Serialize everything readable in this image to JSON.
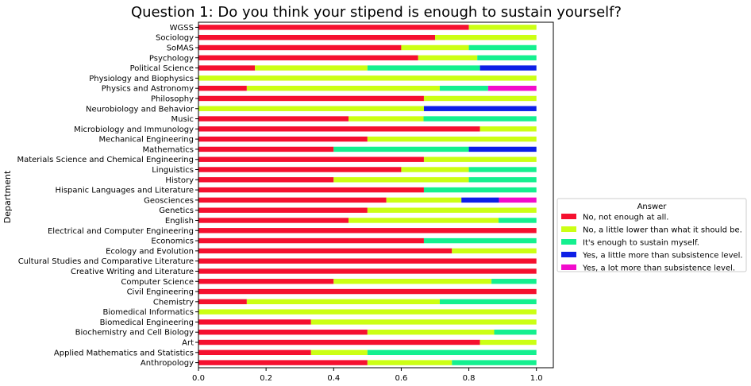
{
  "chart_data": {
    "type": "bar",
    "orientation": "horizontal",
    "stacked": true,
    "title": "Question 1: Do you think your stipend is enough to sustain yourself?",
    "xlabel": "",
    "ylabel": "Department",
    "xlim": [
      0,
      1.05
    ],
    "x_ticks": [
      "0.0",
      "0.2",
      "0.4",
      "0.6",
      "0.8",
      "1.0"
    ],
    "grid": false,
    "legend_title": "Answer",
    "legend_placement": "outside-right",
    "categories": [
      "WGSS",
      "Sociology",
      "SoMAS",
      "Psychology",
      "Political Science",
      "Physiology and Biophysics",
      "Physics and Astronomy",
      "Philosophy",
      "Neurobiology and Behavior",
      "Music",
      "Microbiology and Immunology",
      "Mechanical Engineering",
      "Mathematics",
      "Materials Science and Chemical Engineering",
      "Linguistics",
      "History",
      "Hispanic Languages and Literature",
      "Geosciences",
      "Genetics",
      "English",
      "Electrical and Computer Engineering",
      "Economics",
      "Ecology and Evolution",
      "Cultural Studies and Comparative Literature",
      "Creative Writing and Literature",
      "Computer Science",
      "Civil Engineering",
      "Chemistry",
      "Biomedical Informatics",
      "Biomedical Engineering",
      "Biochemistry and Cell Biology",
      "Art",
      "Applied Mathematics and Statistics",
      "Anthropology"
    ],
    "series": [
      {
        "name": "No, not enough at all.",
        "color": "#f5102f",
        "values": [
          0.8,
          0.7,
          0.6,
          0.65,
          0.167,
          0,
          0.143,
          0.667,
          0,
          0.444,
          0.833,
          0.5,
          0.4,
          0.667,
          0.6,
          0.4,
          0.667,
          0.556,
          0.5,
          0.444,
          1.0,
          0.667,
          0.75,
          1.0,
          1.0,
          0.4,
          1.0,
          0.143,
          0,
          0.333,
          0.5,
          0.833,
          0.333,
          0.5
        ]
      },
      {
        "name": "No, a little lower than what it should be.",
        "color": "#ccff14",
        "values": [
          0.2,
          0.3,
          0.2,
          0.175,
          0.333,
          1.0,
          0.571,
          0.333,
          0.667,
          0.222,
          0.167,
          0.5,
          0,
          0.333,
          0.2,
          0.4,
          0,
          0.222,
          0.5,
          0.444,
          0,
          0,
          0.25,
          0,
          0,
          0.467,
          0,
          0.571,
          1.0,
          0.667,
          0.375,
          0.167,
          0.167,
          0.25
        ]
      },
      {
        "name": "It's enough to sustain myself.",
        "color": "#14f08f",
        "values": [
          0,
          0,
          0.2,
          0.175,
          0.333,
          0,
          0.143,
          0,
          0,
          0.334,
          0,
          0,
          0.4,
          0,
          0.2,
          0.2,
          0.333,
          0,
          0,
          0.112,
          0,
          0.333,
          0,
          0,
          0,
          0.133,
          0,
          0.286,
          0,
          0,
          0.125,
          0,
          0.5,
          0.25
        ]
      },
      {
        "name": "Yes, a little more than subsistence level.",
        "color": "#0d1fe6",
        "values": [
          0,
          0,
          0,
          0,
          0.167,
          0,
          0,
          0,
          0.333,
          0,
          0,
          0,
          0.2,
          0,
          0,
          0,
          0,
          0.111,
          0,
          0,
          0,
          0,
          0,
          0,
          0,
          0,
          0,
          0,
          0,
          0,
          0,
          0,
          0,
          0
        ]
      },
      {
        "name": "Yes, a lot more than subsistence level.",
        "color": "#f20ccc",
        "values": [
          0,
          0,
          0,
          0,
          0,
          0,
          0.143,
          0,
          0,
          0,
          0,
          0,
          0,
          0,
          0,
          0,
          0,
          0.111,
          0,
          0,
          0,
          0,
          0,
          0,
          0,
          0,
          0,
          0,
          0,
          0,
          0,
          0,
          0,
          0
        ]
      }
    ]
  }
}
